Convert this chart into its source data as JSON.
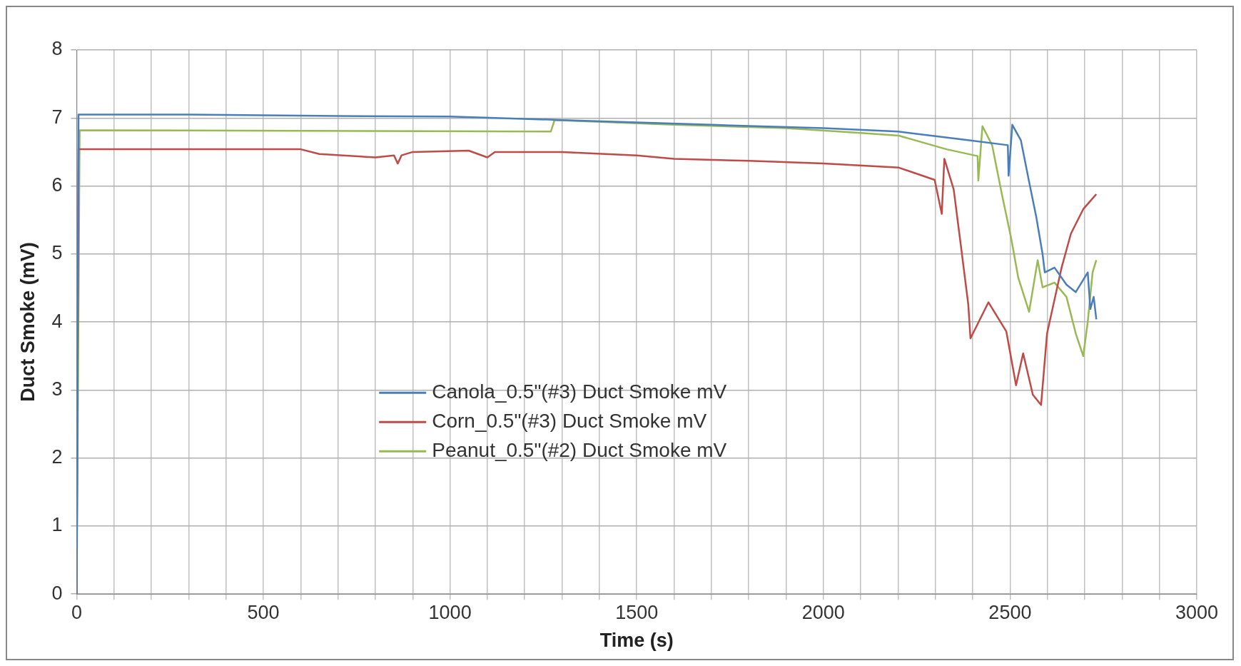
{
  "chart_data": {
    "type": "line",
    "xlabel": "Time (s)",
    "ylabel": "Duct Smoke (mV)",
    "xlim": [
      0,
      3000
    ],
    "ylim": [
      0,
      8
    ],
    "xticks": [
      0,
      {
        "value": 100,
        "label": null
      },
      {
        "value": 200,
        "label": null
      },
      {
        "value": 300,
        "label": null
      },
      {
        "value": 400,
        "label": null
      },
      500,
      {
        "value": 600,
        "label": null
      },
      {
        "value": 700,
        "label": null
      },
      {
        "value": 800,
        "label": null
      },
      {
        "value": 900,
        "label": null
      },
      1000,
      {
        "value": 1100,
        "label": null
      },
      {
        "value": 1200,
        "label": null
      },
      {
        "value": 1300,
        "label": null
      },
      {
        "value": 1400,
        "label": null
      },
      1500,
      {
        "value": 1600,
        "label": null
      },
      {
        "value": 1700,
        "label": null
      },
      {
        "value": 1800,
        "label": null
      },
      {
        "value": 1900,
        "label": null
      },
      2000,
      {
        "value": 2100,
        "label": null
      },
      {
        "value": 2200,
        "label": null
      },
      {
        "value": 2300,
        "label": null
      },
      {
        "value": 2400,
        "label": null
      },
      2500,
      {
        "value": 2600,
        "label": null
      },
      {
        "value": 2700,
        "label": null
      },
      {
        "value": 2800,
        "label": null
      },
      {
        "value": 2900,
        "label": null
      },
      3000
    ],
    "yticks": [
      0,
      1,
      2,
      3,
      4,
      5,
      6,
      7,
      8
    ],
    "grid": true,
    "legend": "bottom",
    "marker": "none",
    "line_style": "solid",
    "series": [
      {
        "name": "Canola_0.5\"(#3) Duct Smoke mV",
        "color": "#4a7ebb",
        "x": [
          0,
          5,
          300,
          700,
          1000,
          1300,
          1700,
          2000,
          2200,
          2394,
          2494,
          2496,
          2506,
          2529,
          2551,
          2570,
          2587,
          2593,
          2619,
          2651,
          2676,
          2708,
          2715,
          2724,
          2731
        ],
        "values": [
          0,
          7.05,
          7.05,
          7.03,
          7.02,
          6.97,
          6.9,
          6.85,
          6.8,
          6.67,
          6.6,
          6.15,
          6.9,
          6.67,
          6.06,
          5.55,
          5.0,
          4.73,
          4.8,
          4.55,
          4.44,
          4.73,
          4.19,
          4.37,
          4.04
        ]
      },
      {
        "name": "Corn_0.5\"(#3) Duct Smoke mV",
        "color": "#be4b48",
        "x": [
          0,
          5,
          600,
          650,
          800,
          850,
          860,
          870,
          900,
          1050,
          1100,
          1120,
          1300,
          1500,
          1600,
          1800,
          2000,
          2202,
          2298,
          2317,
          2324,
          2349,
          2369,
          2388,
          2394,
          2442,
          2490,
          2516,
          2535,
          2561,
          2583,
          2599,
          2619,
          2638,
          2663,
          2696,
          2731
        ],
        "values": [
          0,
          6.54,
          6.54,
          6.47,
          6.42,
          6.45,
          6.33,
          6.45,
          6.5,
          6.52,
          6.42,
          6.5,
          6.5,
          6.45,
          6.4,
          6.37,
          6.33,
          6.27,
          6.09,
          5.59,
          6.4,
          5.95,
          5.09,
          4.26,
          3.76,
          4.29,
          3.86,
          3.07,
          3.54,
          2.93,
          2.78,
          3.83,
          4.33,
          4.8,
          5.3,
          5.66,
          5.88
        ]
      },
      {
        "name": "Peanut_0.5\"(#2) Duct Smoke mV",
        "color": "#98b954",
        "x": [
          0,
          8,
          1270,
          1280,
          1600,
          1900,
          2100,
          2202,
          2330,
          2413,
          2415,
          2426,
          2452,
          2478,
          2503,
          2522,
          2551,
          2574,
          2587,
          2619,
          2651,
          2676,
          2696,
          2708,
          2721,
          2731
        ],
        "values": [
          0,
          6.82,
          6.8,
          6.97,
          6.9,
          6.85,
          6.78,
          6.74,
          6.54,
          6.44,
          6.08,
          6.88,
          6.6,
          5.88,
          5.23,
          4.65,
          4.15,
          4.91,
          4.51,
          4.58,
          4.37,
          3.83,
          3.5,
          4.0,
          4.73,
          4.91
        ]
      }
    ]
  }
}
